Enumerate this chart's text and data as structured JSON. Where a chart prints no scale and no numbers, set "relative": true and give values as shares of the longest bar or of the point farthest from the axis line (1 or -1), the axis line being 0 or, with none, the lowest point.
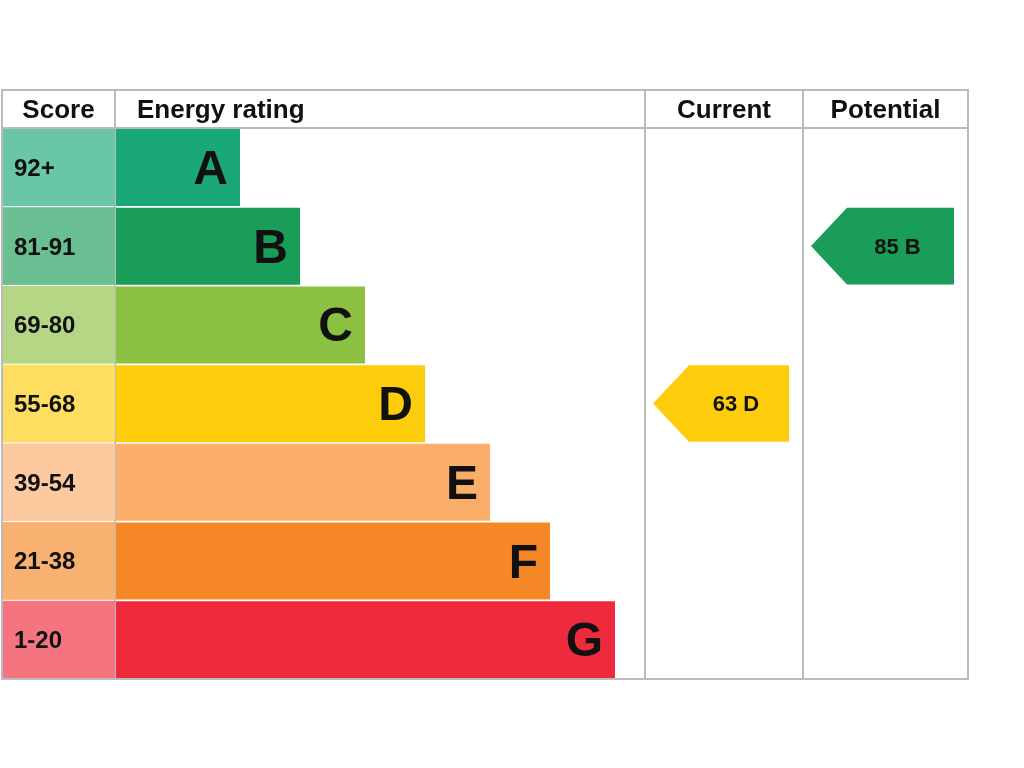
{
  "chart_data": {
    "type": "bar",
    "orientation": "horizontal",
    "relative": true,
    "categories": [
      "92+",
      "81-91",
      "69-80",
      "55-68",
      "39-54",
      "21-38",
      "1-20"
    ],
    "values": [
      0.25,
      0.37,
      0.5,
      0.62,
      0.75,
      0.87,
      1
    ],
    "colors": [
      "#1aa77a",
      "#1a9d58",
      "#8cc043",
      "#fdcc0b",
      "#fbad6a",
      "#f58726",
      "#ee2a3c"
    ],
    "annotations": [
      "Score",
      "Energy rating",
      "Current",
      "Potential",
      "A",
      "B",
      "C",
      "D",
      "E",
      "F",
      "G",
      "63 D",
      "85 B"
    ]
  }
}
